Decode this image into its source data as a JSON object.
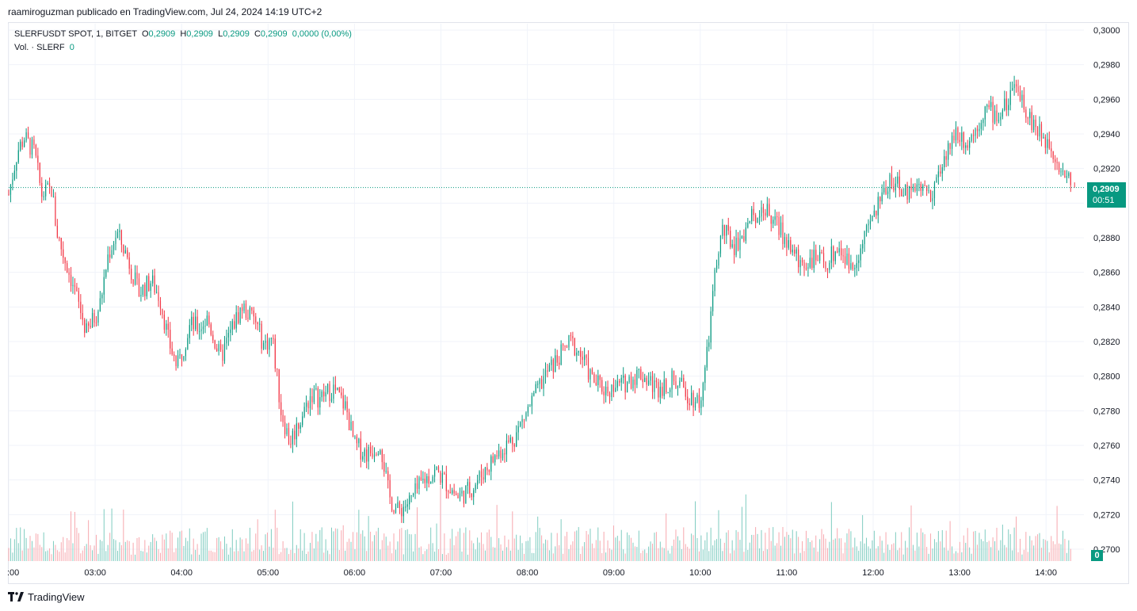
{
  "header": {
    "publisher_line": "raamiroguzman publicado en TradingView.com, Jul 24, 2024 14:19 UTC+2"
  },
  "legend": {
    "symbol": "SLERFUSDT SPOT, 1, BITGET",
    "open_label": "O",
    "open": "0,2909",
    "high_label": "H",
    "high": "0,2909",
    "low_label": "L",
    "low": "0,2909",
    "close_label": "C",
    "close": "0,2909",
    "change": "0,0000 (0,00%)",
    "volume_label": "Vol. · SLERF",
    "volume": "0"
  },
  "price_tag": {
    "price": "0,2909",
    "countdown": "00:51"
  },
  "volume_tag": "0",
  "footer": {
    "brand": "TradingView"
  },
  "colors": {
    "up": "#089981",
    "down": "#f23645",
    "vol_up": "#7fccc0",
    "vol_down": "#f7a8ae",
    "grid": "#f0f3fa"
  },
  "chart_data": {
    "type": "candlestick",
    "interval": "1 minute",
    "y_axis": {
      "ticks": [
        "0,3000",
        "0,2980",
        "0,2960",
        "0,2940",
        "0,2920",
        "0,2880",
        "0,2860",
        "0,2840",
        "0,2820",
        "0,2800",
        "0,2780",
        "0,2760",
        "0,2740",
        "0,2720",
        "0,2700"
      ],
      "tick_values": [
        0.3,
        0.298,
        0.296,
        0.294,
        0.292,
        0.288,
        0.286,
        0.284,
        0.282,
        0.28,
        0.278,
        0.276,
        0.274,
        0.272,
        0.27
      ],
      "range": [
        0.2693,
        0.301
      ]
    },
    "x_axis": {
      "ticks": [
        ":00",
        "03:00",
        "04:00",
        "05:00",
        "06:00",
        "07:00",
        "08:00",
        "09:00",
        "10:00",
        "11:00",
        "12:00",
        "13:00",
        "14:00"
      ],
      "tick_hours": [
        2,
        3,
        4,
        5,
        6,
        7,
        8,
        9,
        10,
        11,
        12,
        13,
        14
      ],
      "range_hours": [
        2.0,
        14.35
      ]
    },
    "last_price": 0.2909,
    "close_path": [
      [
        2.0,
        0.2905
      ],
      [
        2.1,
        0.293
      ],
      [
        2.18,
        0.2938
      ],
      [
        2.3,
        0.2929
      ],
      [
        2.38,
        0.2905
      ],
      [
        2.5,
        0.2908
      ],
      [
        2.55,
        0.2885
      ],
      [
        2.62,
        0.2872
      ],
      [
        2.75,
        0.2852
      ],
      [
        2.9,
        0.2825
      ],
      [
        3.05,
        0.284
      ],
      [
        3.15,
        0.287
      ],
      [
        3.25,
        0.2883
      ],
      [
        3.38,
        0.2868
      ],
      [
        3.5,
        0.2848
      ],
      [
        3.65,
        0.2855
      ],
      [
        3.75,
        0.2845
      ],
      [
        3.85,
        0.282
      ],
      [
        3.95,
        0.2805
      ],
      [
        4.1,
        0.283
      ],
      [
        4.2,
        0.2828
      ],
      [
        4.3,
        0.2833
      ],
      [
        4.45,
        0.281
      ],
      [
        4.6,
        0.283
      ],
      [
        4.7,
        0.284
      ],
      [
        4.85,
        0.2832
      ],
      [
        4.95,
        0.2818
      ],
      [
        5.05,
        0.2822
      ],
      [
        5.15,
        0.278
      ],
      [
        5.25,
        0.2762
      ],
      [
        5.4,
        0.2778
      ],
      [
        5.5,
        0.279
      ],
      [
        5.6,
        0.2787
      ],
      [
        5.75,
        0.2793
      ],
      [
        5.9,
        0.2782
      ],
      [
        6.0,
        0.276
      ],
      [
        6.15,
        0.2755
      ],
      [
        6.3,
        0.2762
      ],
      [
        6.4,
        0.273
      ],
      [
        6.5,
        0.2722
      ],
      [
        6.65,
        0.2728
      ],
      [
        6.8,
        0.274
      ],
      [
        6.95,
        0.2745
      ],
      [
        7.1,
        0.2736
      ],
      [
        7.2,
        0.273
      ],
      [
        7.35,
        0.2735
      ],
      [
        7.5,
        0.2745
      ],
      [
        7.65,
        0.2755
      ],
      [
        7.85,
        0.2765
      ],
      [
        8.0,
        0.278
      ],
      [
        8.2,
        0.28
      ],
      [
        8.35,
        0.281
      ],
      [
        8.5,
        0.282
      ],
      [
        8.62,
        0.2812
      ],
      [
        8.75,
        0.2798
      ],
      [
        8.9,
        0.2792
      ],
      [
        9.1,
        0.2795
      ],
      [
        9.3,
        0.2802
      ],
      [
        9.5,
        0.2793
      ],
      [
        9.7,
        0.2798
      ],
      [
        9.85,
        0.279
      ],
      [
        10.0,
        0.2785
      ],
      [
        10.08,
        0.2812
      ],
      [
        10.15,
        0.285
      ],
      [
        10.25,
        0.2885
      ],
      [
        10.4,
        0.2875
      ],
      [
        10.55,
        0.2888
      ],
      [
        10.7,
        0.2898
      ],
      [
        10.85,
        0.289
      ],
      [
        11.0,
        0.2878
      ],
      [
        11.15,
        0.2865
      ],
      [
        11.3,
        0.2868
      ],
      [
        11.45,
        0.2865
      ],
      [
        11.6,
        0.2875
      ],
      [
        11.75,
        0.2862
      ],
      [
        11.9,
        0.288
      ],
      [
        12.05,
        0.2898
      ],
      [
        12.2,
        0.2915
      ],
      [
        12.35,
        0.2905
      ],
      [
        12.5,
        0.2912
      ],
      [
        12.65,
        0.2905
      ],
      [
        12.8,
        0.292
      ],
      [
        12.95,
        0.2942
      ],
      [
        13.1,
        0.2935
      ],
      [
        13.3,
        0.2955
      ],
      [
        13.45,
        0.295
      ],
      [
        13.6,
        0.2962
      ],
      [
        13.7,
        0.2965
      ],
      [
        13.8,
        0.295
      ],
      [
        13.95,
        0.2938
      ],
      [
        14.05,
        0.2935
      ],
      [
        14.15,
        0.2922
      ],
      [
        14.25,
        0.2915
      ],
      [
        14.3,
        0.2909
      ]
    ],
    "volume": {
      "axis_max_units": 28,
      "note": "relative bar heights in lower pane"
    },
    "current_price_line": 0.2909
  }
}
